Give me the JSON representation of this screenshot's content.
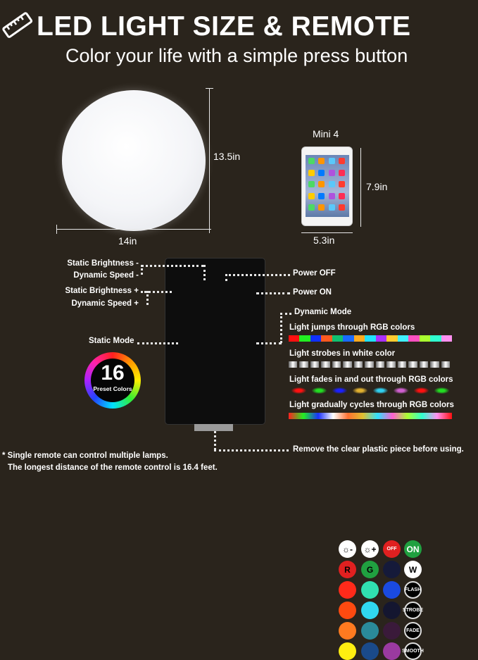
{
  "header": {
    "title": "LED LIGHT SIZE & REMOTE",
    "subtitle": "Color your life with a simple press button",
    "icon": "ruler-icon"
  },
  "ball": {
    "width": "14in",
    "height": "13.5in"
  },
  "tablet": {
    "name": "Mini 4",
    "height": "7.9in",
    "width": "5.3in"
  },
  "remote": {
    "left_labels": [
      "Static Brightness -",
      "Dynamic Speed -",
      "Static Brightness +",
      "Dynamic Speed +"
    ],
    "static_mode": "Static Mode",
    "power_off": "Power OFF",
    "power_on": "Power ON",
    "dynamic_mode": "Dynamic Mode",
    "buttons": [
      [
        {
          "c": "#ffffff",
          "t": "☼-",
          "f": "#000"
        },
        {
          "c": "#ffffff",
          "t": "☼+",
          "f": "#000"
        },
        {
          "c": "#e02020",
          "t": "OFF",
          "f": "#fff"
        },
        {
          "c": "#20a040",
          "t": "ON",
          "f": "#fff"
        }
      ],
      [
        {
          "c": "#e02020",
          "t": "R",
          "f": "#000"
        },
        {
          "c": "#20a040",
          "t": "G",
          "f": "#000"
        },
        {
          "c": "#151a3a",
          "t": ""
        },
        {
          "c": "#ffffff",
          "t": "W",
          "f": "#000"
        }
      ],
      [
        {
          "c": "#ff2a1a",
          "t": ""
        },
        {
          "c": "#30e0b0",
          "t": ""
        },
        {
          "c": "#1a4ae0",
          "t": ""
        },
        {
          "c": "#000",
          "t": "FLASH",
          "f": "#fff",
          "o": 1
        }
      ],
      [
        {
          "c": "#ff4a10",
          "t": ""
        },
        {
          "c": "#30d8f0",
          "t": ""
        },
        {
          "c": "#141630",
          "t": ""
        },
        {
          "c": "#000",
          "t": "STROBE",
          "f": "#fff",
          "o": 1
        }
      ],
      [
        {
          "c": "#ff7a20",
          "t": ""
        },
        {
          "c": "#2a8a9a",
          "t": ""
        },
        {
          "c": "#3a1a3a",
          "t": ""
        },
        {
          "c": "#000",
          "t": "FADE",
          "f": "#fff",
          "o": 1
        }
      ],
      [
        {
          "c": "#ffee10",
          "t": ""
        },
        {
          "c": "#1a4a8a",
          "t": ""
        },
        {
          "c": "#9a3aa0",
          "t": ""
        },
        {
          "c": "#000",
          "t": "SMOOTH",
          "f": "#fff",
          "o": 1
        }
      ]
    ],
    "preset_count": "16",
    "preset_label": "Preset Colors"
  },
  "modes": [
    {
      "label": "Light jumps through RGB colors",
      "colors": [
        "#ff1010",
        "#22ee22",
        "#1030ff",
        "#ff5a20",
        "#10c070",
        "#1a6aff",
        "#ffaa20",
        "#20e0ff",
        "#aa30ff",
        "#ffcc30",
        "#40f0ff",
        "#ff50c0",
        "#aaff30",
        "#30ffd0",
        "#ff90f0"
      ]
    },
    {
      "label": "Light strobes in white color"
    },
    {
      "label": "Light fades in and out through RGB colors",
      "colors": [
        "#ff1010",
        "#22dd22",
        "#1a20ff",
        "#e0b030",
        "#30d0f0",
        "#d060d0",
        "#ff1010",
        "#22dd22"
      ]
    },
    {
      "label": "Light  gradually cycles through RGB colors",
      "colors": [
        "#ff2020",
        "#22ee22",
        "#1a30ff",
        "#ffffff",
        "#ff7030",
        "#e0c030",
        "#30e0ff",
        "#ff60d0",
        "#aaff30",
        "#30ffd0",
        "#ff90f0",
        "#ff1010"
      ]
    }
  ],
  "footer": {
    "remove_note": "Remove the clear plastic piece before using.",
    "note1": "* Single remote can control multiple lamps.",
    "note2": "The longest distance of the remote control is 16.4 feet."
  }
}
